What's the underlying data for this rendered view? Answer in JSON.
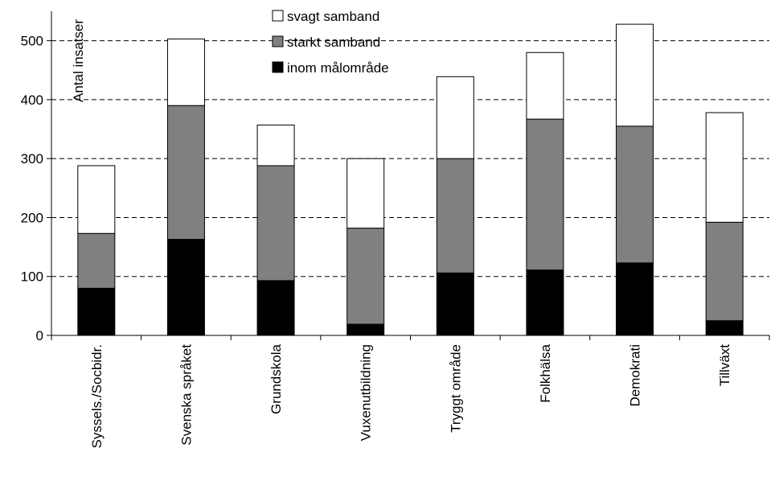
{
  "chart_data": {
    "type": "bar",
    "stacked": true,
    "categories": [
      "Syssels./Socbidr.",
      "Svenska språket",
      "Grundskola",
      "Vuxenutbildning",
      "Tryggt område",
      "Folkhälsa",
      "Demokrati",
      "Tillväxt"
    ],
    "series": [
      {
        "name": "inom målområde",
        "color": "#000000",
        "values": [
          80,
          163,
          93,
          19,
          106,
          111,
          123,
          25
        ]
      },
      {
        "name": "starkt samband",
        "color": "#808080",
        "values": [
          93,
          227,
          195,
          163,
          194,
          256,
          232,
          167
        ]
      },
      {
        "name": "svagt samband",
        "color": "#ffffff",
        "values": [
          115,
          113,
          69,
          118,
          139,
          113,
          173,
          186
        ]
      }
    ],
    "legend_order": [
      "svagt samband",
      "starkt samband",
      "inom målområde"
    ],
    "legend_position": "top-center",
    "ylabel": "Antal insatser",
    "xlabel": "",
    "yticks": [
      0,
      100,
      200,
      300,
      400,
      500
    ],
    "ylim": [
      0,
      550
    ],
    "grid": "dashed horizontal"
  }
}
